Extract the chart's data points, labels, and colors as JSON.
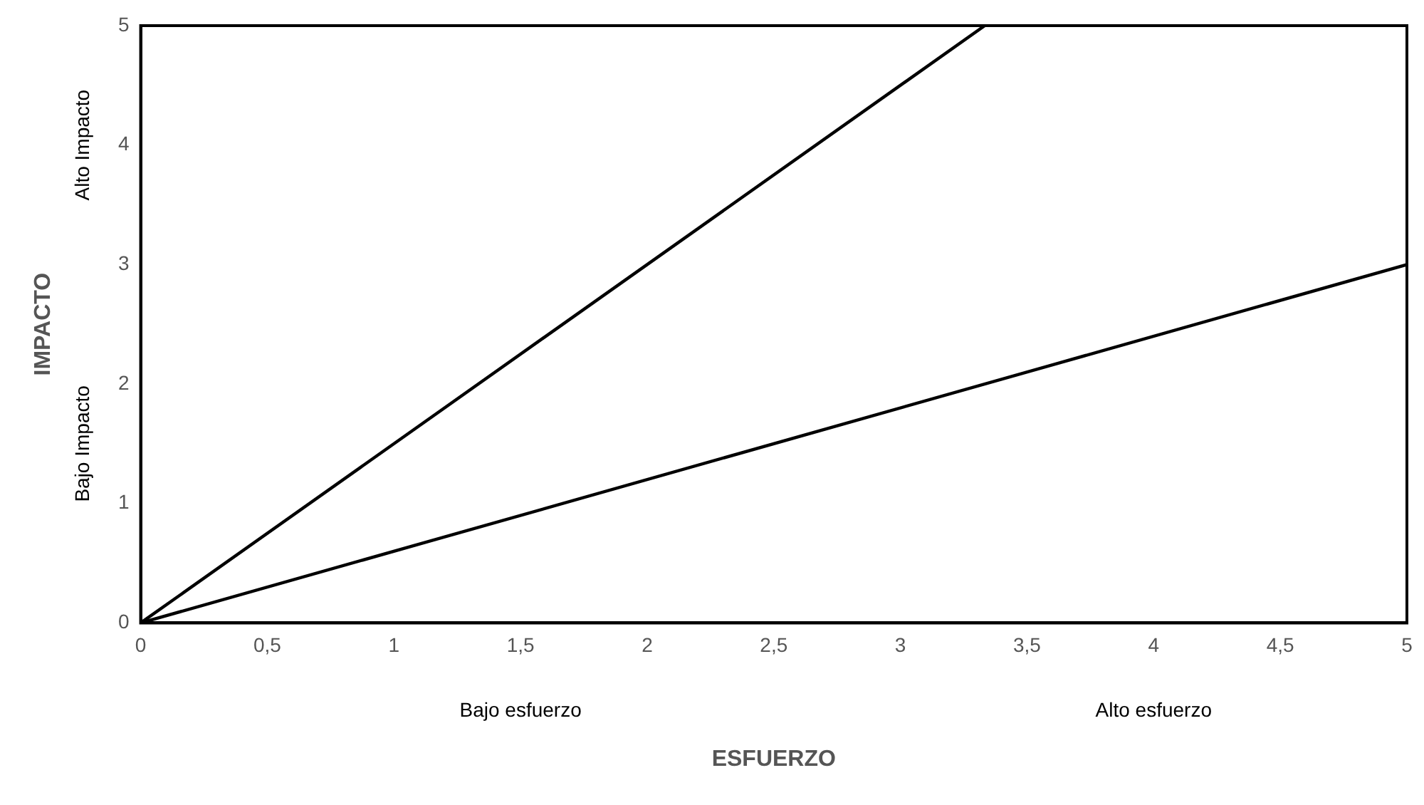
{
  "chart_data": {
    "type": "line",
    "xlabel": "ESFUERZO",
    "ylabel": "IMPACTO",
    "series": [
      {
        "color": "#000000",
        "x": [
          0,
          3.333
        ],
        "values": [
          0,
          5
        ]
      },
      {
        "color": "#000000",
        "x": [
          0,
          5
        ],
        "values": [
          0,
          3
        ]
      }
    ],
    "xlim": [
      0,
      5
    ],
    "ylim": [
      0,
      5
    ],
    "xticks": [
      0,
      {
        "value": 0.5,
        "label": "0,5"
      },
      1,
      {
        "value": 1.5,
        "label": "1,5"
      },
      2,
      {
        "value": 2.5,
        "label": "2,5"
      },
      3,
      {
        "value": 3.5,
        "label": "3,5"
      },
      4,
      {
        "value": 4.5,
        "label": "4,5"
      },
      5
    ],
    "yticks": [
      0,
      1,
      2,
      3,
      4,
      5
    ],
    "grid": false,
    "legend": false,
    "marker": "none",
    "line_style": "solid",
    "annotations": [
      "Alto Impacto",
      "Bajo Impacto",
      "Bajo esfuerzo",
      "Alto esfuerzo"
    ]
  }
}
